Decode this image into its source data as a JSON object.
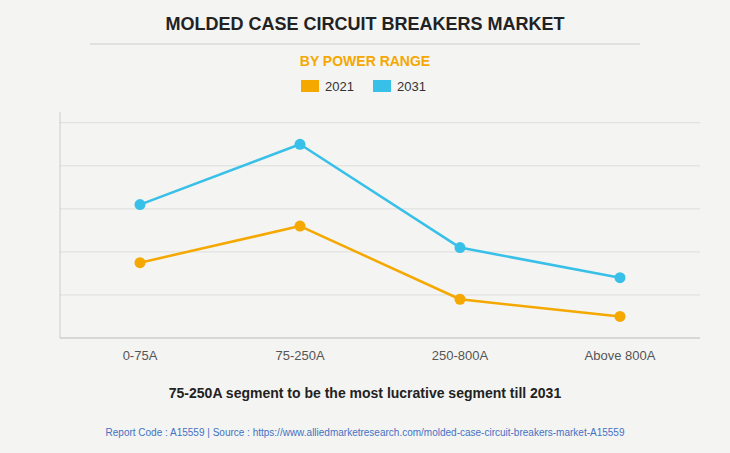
{
  "chart_data": {
    "type": "line",
    "title": "MOLDED CASE CIRCUIT BREAKERS MARKET",
    "subtitle": "BY POWER RANGE",
    "categories": [
      "0-75A",
      "75-250A",
      "250-800A",
      "Above 800A"
    ],
    "series": [
      {
        "name": "2021",
        "color": "#F5A800",
        "values": [
          35,
          52,
          18,
          10
        ]
      },
      {
        "name": "2031",
        "color": "#38C0E8",
        "values": [
          62,
          90,
          42,
          28
        ]
      }
    ],
    "ylim": [
      0,
      105
    ],
    "yticks": [
      0,
      20,
      40,
      60,
      80,
      100
    ],
    "grid": true,
    "tick_labels": "x",
    "legend": "top",
    "marker": "circle",
    "annotations": [
      "75-250A segment to be the most lucrative segment till 2031",
      "Report Code : A15559  |  Source : https://www.alliedmarketresearch.com/molded-case-circuit-breakers-market-A15559"
    ]
  }
}
